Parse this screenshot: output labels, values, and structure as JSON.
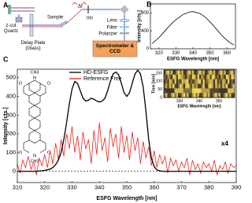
{
  "panels": {
    "a": "A"
  },
  "diagram": {
    "quartz": "z-cut Quartz",
    "delay_plate": "Delay Plate (Glass)",
    "sample": "Sample",
    "delay": "Δt",
    "iris": "Iris",
    "lens": "Lens",
    "filter": "Filter",
    "polarizer": "Polarizer",
    "spectrometer": "Spectrometer & CCD"
  },
  "molecule": {
    "top": "CH3",
    "bottom": "CH3",
    "n_top": "N",
    "n_bottom": "N",
    "o_tl": "O",
    "o_tr": "O",
    "o_bl": "O",
    "o_br": "O"
  },
  "chart_data": [
    {
      "type": "line",
      "label": "B",
      "xlabel": "ESFG Wavelength [nm]",
      "ylabel": "Intensity [cts.]",
      "xlim": [
        315,
        365
      ],
      "xticks": [
        320,
        330,
        340,
        350,
        360
      ],
      "ylim": [
        0,
        1000
      ],
      "yticks": [
        0,
        400,
        800
      ],
      "x": [
        316,
        318,
        320,
        322,
        324,
        326,
        328,
        330,
        332,
        334,
        336,
        338,
        340,
        342,
        344,
        346,
        348,
        350,
        352,
        354,
        356,
        358,
        360,
        362,
        364
      ],
      "series": [
        {
          "color": "#000000",
          "values": [
            120,
            180,
            250,
            330,
            420,
            500,
            580,
            650,
            700,
            760,
            790,
            820,
            830,
            810,
            790,
            740,
            680,
            600,
            520,
            430,
            340,
            260,
            190,
            130,
            90
          ]
        }
      ]
    },
    {
      "type": "line",
      "label": "C",
      "xlabel": "ESFG Wavelength [nm]",
      "ylabel": "Intensity [cts.]",
      "xlim": [
        310,
        390
      ],
      "xticks": [
        310,
        320,
        330,
        340,
        350,
        360,
        370,
        380,
        390
      ],
      "ylim": [
        -60,
        545
      ],
      "yticks": [
        0,
        100,
        200,
        300,
        400,
        500
      ],
      "dashed_hline": 0,
      "annotation": "x4",
      "annotation_color": "#e8241c",
      "x": [
        310,
        311,
        312,
        313,
        314,
        315,
        316,
        317,
        318,
        319,
        320,
        321,
        322,
        323,
        324,
        325,
        326,
        327,
        328,
        329,
        330,
        331,
        332,
        333,
        334,
        335,
        336,
        337,
        338,
        339,
        340,
        341,
        342,
        343,
        344,
        345,
        346,
        347,
        348,
        349,
        350,
        351,
        352,
        353,
        354,
        355,
        356,
        357,
        358,
        359,
        360,
        361,
        362,
        363,
        364,
        365,
        366,
        367,
        368,
        369,
        370,
        371,
        372,
        373,
        374,
        375,
        376,
        377,
        378,
        379,
        380,
        381,
        382,
        383,
        384,
        385,
        386,
        387,
        388,
        389,
        390
      ],
      "series": [
        {
          "name": "HD-ESFG",
          "color": "#000000",
          "values": [
            0,
            0,
            0,
            0,
            0,
            0,
            0,
            0,
            2,
            3,
            5,
            8,
            12,
            20,
            35,
            60,
            100,
            170,
            260,
            360,
            440,
            480,
            470,
            430,
            390,
            375,
            380,
            390,
            385,
            375,
            370,
            375,
            390,
            430,
            480,
            520,
            530,
            515,
            470,
            420,
            400,
            420,
            470,
            520,
            540,
            520,
            450,
            320,
            170,
            70,
            25,
            8,
            3,
            0,
            0,
            0,
            0,
            0,
            0,
            0,
            0,
            0,
            0,
            0,
            0,
            0,
            0,
            0,
            0,
            0,
            0,
            0,
            0,
            0,
            0,
            0,
            0,
            0,
            0,
            0,
            0
          ]
        },
        {
          "name": "Reference Free",
          "color": "#e8241c",
          "values": [
            40,
            -10,
            60,
            20,
            80,
            10,
            50,
            -20,
            70,
            30,
            90,
            20,
            110,
            40,
            150,
            60,
            170,
            80,
            200,
            120,
            240,
            100,
            190,
            60,
            210,
            120,
            170,
            40,
            220,
            90,
            260,
            110,
            180,
            50,
            230,
            130,
            200,
            70,
            240,
            100,
            190,
            60,
            210,
            110,
            180,
            40,
            160,
            70,
            130,
            30,
            110,
            20,
            90,
            40,
            80,
            -10,
            70,
            30,
            60,
            0,
            50,
            20,
            70,
            -20,
            60,
            10,
            40,
            -10,
            50,
            20,
            40,
            0,
            60,
            -20,
            30,
            10,
            50,
            -10,
            40,
            20,
            30
          ]
        }
      ]
    },
    {
      "type": "heatmap",
      "xlabel": "ESFG Wavelength [nm]",
      "ylabel": "Time [min]",
      "xlim": [
        322,
        358
      ],
      "xticks": [
        330,
        340,
        350
      ],
      "ylim": [
        0,
        170
      ],
      "yticks": [
        0,
        50,
        100,
        150
      ]
    }
  ]
}
